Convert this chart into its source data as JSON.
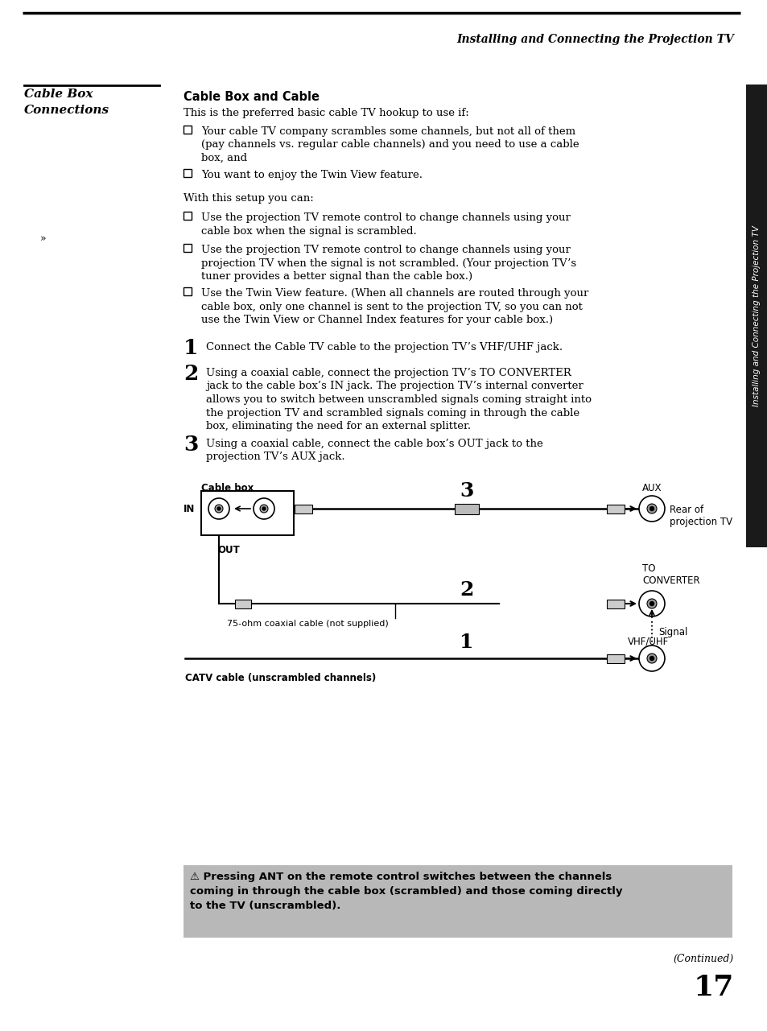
{
  "title_header": "Installing and Connecting the Projection TV",
  "section_title_line1": "Cable Box",
  "section_title_line2": "Connections",
  "content_title": "Cable Box and Cable",
  "content_intro": "This is the preferred basic cable TV hookup to use if:",
  "bullet1_line1": "Your cable TV company scrambles some channels, but not all of them",
  "bullet1_line2": "(pay channels vs. regular cable channels) and you need to use a cable",
  "bullet1_line3": "box, and",
  "bullet2": "You want to enjoy the Twin View feature.",
  "with_setup": "With this setup you can:",
  "b2_1_l1": "Use the projection TV remote control to change channels using your",
  "b2_1_l2": "cable box when the signal is scrambled.",
  "b2_2_l1": "Use the projection TV remote control to change channels using your",
  "b2_2_l2": "projection TV when the signal is not scrambled. (Your projection TV’s",
  "b2_2_l3": "tuner provides a better signal than the cable box.)",
  "b2_3_l1": "Use the Twin View feature. (When all channels are routed through your",
  "b2_3_l2": "cable box, only one channel is sent to the projection TV, so you can not",
  "b2_3_l3": "use the Twin View or Channel Index features for your cable box.)",
  "step1_text": "Connect the Cable TV cable to the projection TV’s VHF/UHF jack.",
  "step2_l1": "Using a coaxial cable, connect the projection TV’s TO CONVERTER",
  "step2_l2": "jack to the cable box’s IN jack. The projection TV’s internal converter",
  "step2_l3": "allows you to switch between unscrambled signals coming straight into",
  "step2_l4": "the projection TV and scrambled signals coming in through the cable",
  "step2_l5": "box, eliminating the need for an external splitter.",
  "step3_l1": "Using a coaxial cable, connect the cable box’s OUT jack to the",
  "step3_l2": "projection TV’s AUX jack.",
  "note_line1": "⚠ Pressing ANT on the remote control switches between the channels",
  "note_line2": "coming in through the cable box (scrambled) and those coming directly",
  "note_line3": "to the TV (unscrambled).",
  "continued": "(Continued)",
  "page_number": "17",
  "sidebar_text": "Installing and Connecting the Projection TV",
  "bg": "#ffffff",
  "note_bg": "#b8b8b8",
  "sidebar_bg": "#1a1a1a",
  "black": "#000000",
  "gray_connector": "#888888",
  "gray_jack": "#cccccc"
}
